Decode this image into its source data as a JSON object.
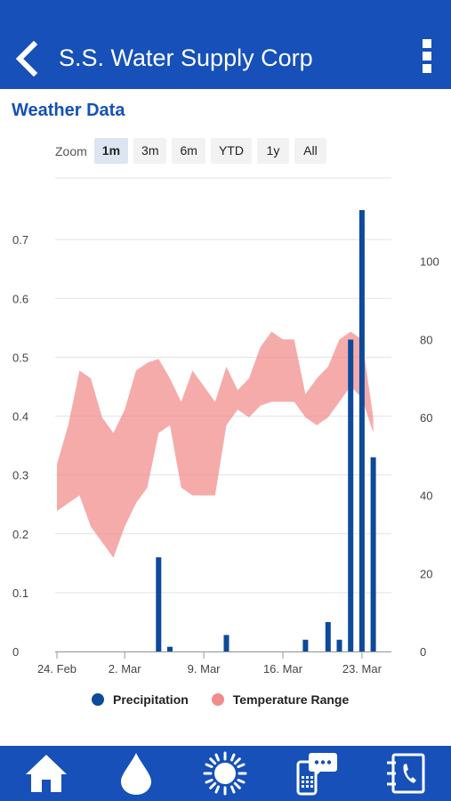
{
  "header": {
    "title": "S.S. Water Supply Corp",
    "back_icon": "chevron-left-icon",
    "menu_icon": "more-vertical-icon"
  },
  "section": {
    "title": "Weather Data"
  },
  "zoom": {
    "label": "Zoom",
    "options": [
      "1m",
      "3m",
      "6m",
      "YTD",
      "1y",
      "All"
    ],
    "selected": "1m"
  },
  "legend": [
    {
      "label": "Precipitation",
      "color": "#0d4a9a"
    },
    {
      "label": "Temperature Range",
      "color": "#f28b8b"
    }
  ],
  "chart_data": {
    "type": "bar",
    "x_ticks": [
      "24. Feb",
      "2. Mar",
      "9. Mar",
      "16. Mar",
      "23. Mar"
    ],
    "y_left_ticks": [
      "0",
      "0.1",
      "0.2",
      "0.3",
      "0.4",
      "0.5",
      "0.6",
      "0.7"
    ],
    "y_right_ticks": [
      "0",
      "20",
      "40",
      "60",
      "80",
      "100"
    ],
    "ylim_left": [
      0,
      0.8
    ],
    "ylim_right": [
      0,
      120
    ],
    "series": [
      {
        "name": "Precipitation",
        "axis": "left",
        "dates": [
          "2. Mar",
          "4. Mar",
          "5. Mar",
          "10. Mar",
          "17. Mar",
          "19. Mar",
          "20. Mar",
          "21. Mar",
          "22. Mar",
          "23. Mar"
        ],
        "day_index": [
          5,
          9,
          10,
          15,
          22,
          24,
          25,
          26,
          27,
          28
        ],
        "values": [
          0.0,
          0.16,
          0.008,
          0.028,
          0.02,
          0.05,
          0.02,
          0.53,
          0.75,
          0.33
        ]
      },
      {
        "name": "Temperature Range",
        "axis": "right",
        "day_index": [
          0,
          1,
          2,
          3,
          4,
          5,
          6,
          7,
          8,
          9,
          10,
          11,
          12,
          13,
          14,
          15,
          16,
          17,
          18,
          19,
          20,
          21,
          22,
          23,
          24,
          25,
          26,
          27,
          28
        ],
        "high": [
          48,
          58,
          72,
          70,
          60,
          56,
          62,
          72,
          74,
          75,
          70,
          64,
          72,
          68,
          64,
          73,
          67,
          70,
          78,
          82,
          80,
          80,
          66,
          70,
          73,
          80,
          82,
          80,
          60
        ],
        "low": [
          36,
          38,
          40,
          32,
          28,
          24,
          32,
          38,
          42,
          56,
          58,
          42,
          40,
          40,
          40,
          58,
          62,
          60,
          63,
          64,
          64,
          64,
          60,
          58,
          60,
          64,
          68,
          65,
          56
        ]
      }
    ],
    "grid": true,
    "legend_position": "bottom"
  },
  "nav": [
    {
      "icon": "home-icon"
    },
    {
      "icon": "water-drop-icon"
    },
    {
      "icon": "sun-icon"
    },
    {
      "icon": "phone-chat-icon"
    },
    {
      "icon": "contact-book-icon"
    }
  ]
}
